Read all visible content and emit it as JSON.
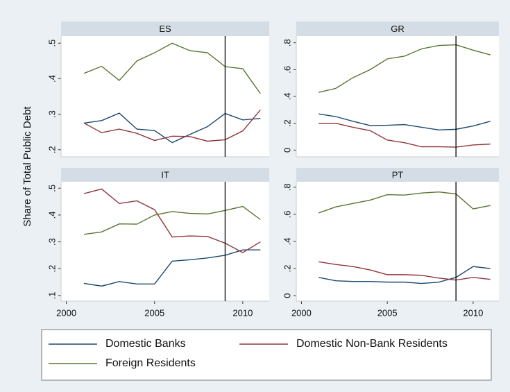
{
  "ylabel": "Share of Total Public Debt",
  "chart_data": [
    {
      "type": "line",
      "title": "ES",
      "x": [
        2001,
        2002,
        2003,
        2004,
        2005,
        2006,
        2007,
        2008,
        2009,
        2010,
        2011
      ],
      "xlim": [
        1999.7,
        2011.5
      ],
      "ylim": [
        0.18,
        0.52
      ],
      "yticks": [
        {
          "value": 0.2,
          "label": ".2"
        },
        {
          "value": 0.3,
          "label": ".3"
        },
        {
          "value": 0.4,
          "label": ".4"
        },
        {
          "value": 0.5,
          "label": ".5"
        }
      ],
      "vline": 2009,
      "series": [
        {
          "name": "Domestic Banks",
          "color": "#1a476f",
          "values": [
            0.275,
            0.282,
            0.303,
            0.258,
            0.254,
            0.22,
            0.243,
            0.265,
            0.302,
            0.284,
            0.288
          ]
        },
        {
          "name": "Domestic Non-Bank Residents",
          "color": "#90353b",
          "values": [
            0.275,
            0.248,
            0.258,
            0.246,
            0.226,
            0.238,
            0.237,
            0.224,
            0.228,
            0.253,
            0.312
          ]
        },
        {
          "name": "Foreign Residents",
          "color": "#55752f",
          "values": [
            0.415,
            0.435,
            0.395,
            0.45,
            0.473,
            0.5,
            0.479,
            0.473,
            0.434,
            0.428,
            0.358
          ]
        }
      ]
    },
    {
      "type": "line",
      "title": "GR",
      "x": [
        2001,
        2002,
        2003,
        2004,
        2005,
        2006,
        2007,
        2008,
        2009,
        2010,
        2011
      ],
      "xlim": [
        1999.7,
        2011.5
      ],
      "ylim": [
        -0.05,
        0.85
      ],
      "yticks": [
        0,
        {
          "value": 0.2,
          "label": ".2"
        },
        {
          "value": 0.4,
          "label": ".4"
        },
        {
          "value": 0.6,
          "label": ".6"
        },
        {
          "value": 0.8,
          "label": ".8"
        }
      ],
      "vline": 2009,
      "series": [
        {
          "name": "Domestic Banks",
          "color": "#1a476f",
          "values": [
            0.27,
            0.25,
            0.215,
            0.183,
            0.185,
            0.19,
            0.17,
            0.15,
            0.155,
            0.18,
            0.215
          ]
        },
        {
          "name": "Domestic Non-Bank Residents",
          "color": "#90353b",
          "values": [
            0.2,
            0.2,
            0.17,
            0.145,
            0.075,
            0.055,
            0.025,
            0.025,
            0.022,
            0.038,
            0.045
          ]
        },
        {
          "name": "Foreign Residents",
          "color": "#55752f",
          "values": [
            0.43,
            0.46,
            0.54,
            0.6,
            0.68,
            0.7,
            0.755,
            0.78,
            0.785,
            0.745,
            0.71
          ]
        }
      ]
    },
    {
      "type": "line",
      "title": "IT",
      "x": [
        2001,
        2002,
        2003,
        2004,
        2005,
        2006,
        2007,
        2008,
        2009,
        2010,
        2011
      ],
      "xlim": [
        1999.7,
        2011.5
      ],
      "ylim": [
        0.079,
        0.524
      ],
      "xticks": [
        2000,
        2005,
        2010
      ],
      "yticks": [
        {
          "value": 0.1,
          "label": ".1"
        },
        {
          "value": 0.2,
          "label": ".2"
        },
        {
          "value": 0.3,
          "label": ".3"
        },
        {
          "value": 0.4,
          "label": ".4"
        },
        {
          "value": 0.5,
          "label": ".5"
        }
      ],
      "vline": 2009,
      "series": [
        {
          "name": "Domestic Banks",
          "color": "#1a476f",
          "values": [
            0.145,
            0.135,
            0.152,
            0.143,
            0.143,
            0.228,
            0.233,
            0.24,
            0.25,
            0.27,
            0.27
          ]
        },
        {
          "name": "Domestic Non-Bank Residents",
          "color": "#90353b",
          "values": [
            0.48,
            0.497,
            0.443,
            0.453,
            0.42,
            0.318,
            0.322,
            0.32,
            0.295,
            0.26,
            0.3
          ]
        },
        {
          "name": "Foreign Residents",
          "color": "#55752f",
          "values": [
            0.328,
            0.337,
            0.367,
            0.366,
            0.4,
            0.413,
            0.406,
            0.404,
            0.417,
            0.432,
            0.383
          ]
        }
      ]
    },
    {
      "type": "line",
      "title": "PT",
      "x": [
        2001,
        2002,
        2003,
        2004,
        2005,
        2006,
        2007,
        2008,
        2009,
        2010,
        2011
      ],
      "xlim": [
        1999.7,
        2011.5
      ],
      "ylim": [
        -0.04,
        0.84
      ],
      "xticks": [
        2000,
        2005,
        2010
      ],
      "yticks": [
        0,
        {
          "value": 0.2,
          "label": ".2"
        },
        {
          "value": 0.4,
          "label": ".4"
        },
        {
          "value": 0.6,
          "label": ".6"
        },
        {
          "value": 0.8,
          "label": ".8"
        }
      ],
      "vline": 2009,
      "series": [
        {
          "name": "Domestic Banks",
          "color": "#1a476f",
          "values": [
            0.135,
            0.11,
            0.105,
            0.105,
            0.1,
            0.1,
            0.09,
            0.1,
            0.135,
            0.215,
            0.2
          ]
        },
        {
          "name": "Domestic Non-Bank Residents",
          "color": "#90353b",
          "values": [
            0.25,
            0.23,
            0.215,
            0.19,
            0.155,
            0.155,
            0.15,
            0.13,
            0.115,
            0.135,
            0.12
          ]
        },
        {
          "name": "Foreign Residents",
          "color": "#55752f",
          "values": [
            0.61,
            0.655,
            0.68,
            0.705,
            0.745,
            0.742,
            0.757,
            0.765,
            0.75,
            0.64,
            0.665
          ]
        }
      ]
    }
  ]
}
